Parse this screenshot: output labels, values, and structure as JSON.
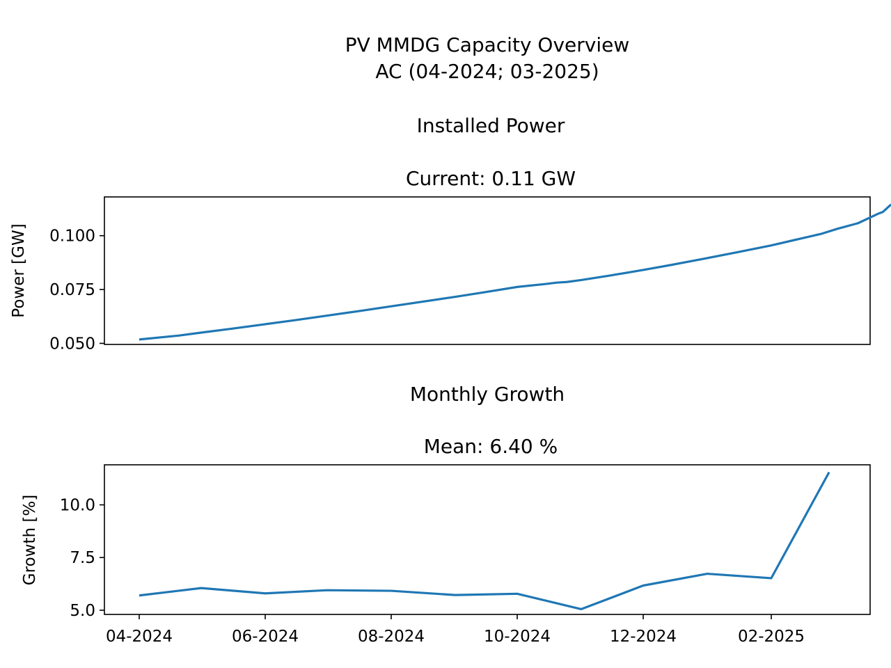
{
  "figure": {
    "title_line1": "PV MMDG Capacity Overview",
    "title_line2": "AC (04-2024; 03-2025)"
  },
  "chart_data": [
    {
      "type": "line",
      "heading": "Installed Power",
      "subtitle": "Current: 0.11 GW",
      "ylabel": "Power [GW]",
      "xlabel": "",
      "ylim": [
        0.0495,
        0.118
      ],
      "yticks": [
        "0.050",
        "0.075",
        "0.100"
      ],
      "ytick_values": [
        0.05,
        0.075,
        0.1
      ],
      "show_x_ticks": false,
      "grid": false,
      "line_color": "#1f77b4",
      "series": [
        {
          "x": [
            "2024-04-01",
            "2024-04-20",
            "2024-05-01",
            "2024-05-15",
            "2024-06-01",
            "2024-06-15",
            "2024-07-01",
            "2024-07-15",
            "2024-08-01",
            "2024-08-15",
            "2024-09-01",
            "2024-09-15",
            "2024-10-01",
            "2024-10-05",
            "2024-10-15",
            "2024-10-20",
            "2024-10-25",
            "2024-11-01",
            "2024-11-15",
            "2024-12-01",
            "2024-12-15",
            "2025-01-01",
            "2025-01-15",
            "2025-02-01",
            "2025-02-15",
            "2025-02-25",
            "2025-03-05",
            "2025-03-15",
            "2025-03-25",
            "2025-03-27",
            "2025-03-31"
          ],
          "values": [
            0.0518,
            0.0536,
            0.055,
            0.0567,
            0.0589,
            0.0607,
            0.0629,
            0.0648,
            0.0672,
            0.0692,
            0.0716,
            0.0737,
            0.0762,
            0.0766,
            0.0776,
            0.0782,
            0.0785,
            0.0794,
            0.0815,
            0.0841,
            0.0865,
            0.0896,
            0.0922,
            0.0955,
            0.0986,
            0.1008,
            0.1032,
            0.1058,
            0.1103,
            0.111,
            0.1145
          ]
        }
      ]
    },
    {
      "type": "line",
      "heading": "Monthly Growth",
      "subtitle": "Mean: 6.40 %",
      "ylabel": "Growth [%]",
      "xlabel": "",
      "ylim": [
        4.8,
        11.9
      ],
      "yticks": [
        "5.0",
        "7.5",
        "10.0"
      ],
      "ytick_values": [
        5.0,
        7.5,
        10.0
      ],
      "xticks": [
        "04-2024",
        "06-2024",
        "08-2024",
        "10-2024",
        "12-2024",
        "02-2025"
      ],
      "xtick_dates": [
        "2024-04-01",
        "2024-06-01",
        "2024-08-01",
        "2024-10-01",
        "2024-12-01",
        "2025-02-01"
      ],
      "grid": false,
      "line_color": "#1f77b4",
      "series": [
        {
          "x": [
            "2024-04-01",
            "2024-05-01",
            "2024-06-01",
            "2024-07-01",
            "2024-08-01",
            "2024-09-01",
            "2024-10-01",
            "2024-11-01",
            "2024-12-01",
            "2025-01-01",
            "2025-02-01",
            "2025-03-01"
          ],
          "values": [
            5.7,
            6.05,
            5.8,
            5.95,
            5.92,
            5.72,
            5.78,
            5.05,
            6.17,
            6.73,
            6.52,
            11.55
          ]
        }
      ]
    }
  ]
}
